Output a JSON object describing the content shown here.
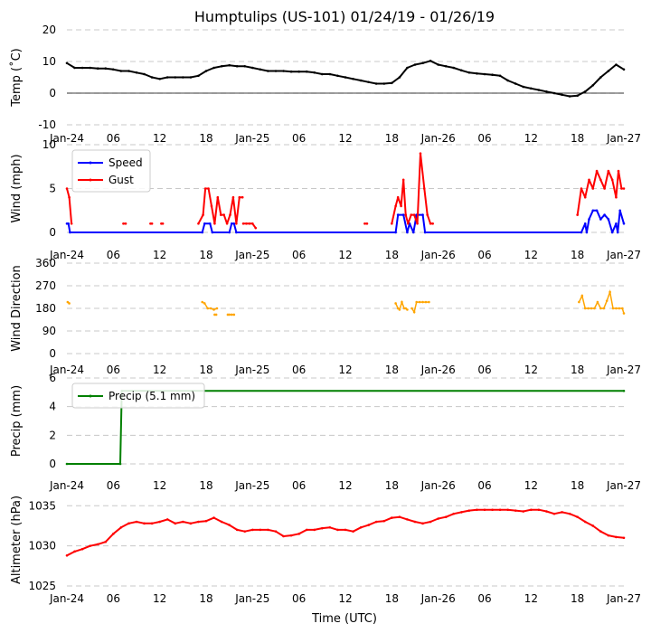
{
  "title": "Humptulips (US-101) 01/24/19 - 01/26/19",
  "xlabel": "Time (UTC)",
  "x_tick_labels": [
    "Jan-24",
    "06",
    "12",
    "18",
    "Jan-25",
    "06",
    "12",
    "18",
    "Jan-26",
    "06",
    "12",
    "18",
    "Jan-27"
  ],
  "colors": {
    "temp": "#000000",
    "speed": "#0000ff",
    "gust": "#ff0000",
    "dir": "#ffa500",
    "precip": "#008000",
    "alt": "#ff0000",
    "grid": "#c8c8c8"
  },
  "chart_data": [
    {
      "id": "temp",
      "type": "line",
      "ylabel": "Temp ($^\\circ$C)",
      "ylabel_text": "Temp (˚C)",
      "ylim": [
        -10,
        20
      ],
      "yticks": [
        -10,
        0,
        10,
        20
      ],
      "xlim": [
        0,
        72
      ],
      "zero_line": true,
      "series": [
        {
          "name": "Temperature",
          "color": "#000000",
          "x": [
            0,
            1,
            2,
            3,
            4,
            5,
            6,
            7,
            8,
            9,
            10,
            11,
            12,
            13,
            14,
            15,
            16,
            17,
            18,
            19,
            20,
            21,
            22,
            23,
            24,
            25,
            26,
            27,
            28,
            29,
            30,
            31,
            32,
            33,
            34,
            35,
            36,
            37,
            38,
            39,
            40,
            41,
            42,
            43,
            44,
            45,
            46,
            47,
            48,
            49,
            50,
            51,
            52,
            53,
            54,
            55,
            56,
            57,
            58,
            59,
            60,
            61,
            62,
            63,
            64,
            65,
            66,
            67,
            68,
            69,
            70,
            71,
            72
          ],
          "values": [
            9.5,
            8,
            8,
            8,
            7.8,
            7.8,
            7.5,
            7,
            7,
            6.5,
            6,
            5,
            4.5,
            5,
            5,
            5,
            5,
            5.5,
            7,
            8,
            8.5,
            8.8,
            8.5,
            8.5,
            8,
            7.5,
            7,
            7,
            7,
            6.8,
            6.8,
            6.8,
            6.5,
            6,
            6,
            5.5,
            5,
            4.5,
            4,
            3.5,
            3,
            3,
            3.2,
            5,
            8,
            9,
            9.5,
            10.2,
            9,
            8.5,
            8,
            7.2,
            6.5,
            6.2,
            6,
            5.8,
            5.5,
            4,
            3,
            2,
            1.5,
            1,
            0.5,
            0,
            -0.5,
            -1,
            -0.8,
            0.5,
            2.5,
            5,
            7,
            9,
            7.5
          ]
        }
      ]
    },
    {
      "id": "wind",
      "type": "line",
      "ylabel": "Wind (mph)",
      "ylim": [
        0,
        10
      ],
      "yticks": [
        0,
        5,
        10
      ],
      "xlim": [
        0,
        72
      ],
      "legend": {
        "position": "top-left",
        "entries": [
          "Speed",
          "Gust"
        ]
      },
      "series": [
        {
          "name": "Speed",
          "color": "#0000ff",
          "x": [
            0,
            0.2,
            0.4,
            17.5,
            17.8,
            18.5,
            18.8,
            21,
            21.3,
            21.6,
            21.9,
            42.5,
            42.8,
            43.5,
            44,
            44.3,
            44.8,
            45.2,
            46,
            46.3,
            66.5,
            67,
            67.2,
            67.5,
            68,
            68.5,
            69,
            69.5,
            70,
            70.5,
            71,
            71.2,
            71.5,
            72
          ],
          "values": [
            1,
            1,
            0,
            0,
            1,
            1,
            0,
            0,
            1,
            1,
            0,
            0,
            2,
            2,
            0,
            1,
            0,
            2,
            2,
            0,
            0,
            1,
            0,
            1.5,
            2.5,
            2.5,
            1.5,
            2,
            1.5,
            0,
            1,
            0,
            2.5,
            1
          ]
        },
        {
          "name": "Gust",
          "color": "#ff0000",
          "segments": [
            {
              "x": [
                0,
                0.3,
                0.6
              ],
              "values": [
                5,
                4,
                1
              ]
            },
            {
              "x": [
                7.3,
                7.6
              ],
              "values": [
                1,
                1
              ]
            },
            {
              "x": [
                10.8,
                11.0
              ],
              "values": [
                1,
                1
              ]
            },
            {
              "x": [
                12.2,
                12.4
              ],
              "values": [
                1,
                1
              ]
            },
            {
              "x": [
                17,
                17.6,
                17.9,
                18.3,
                18.7,
                19.1,
                19.5,
                19.9,
                20.3,
                20.7,
                21.1,
                21.5,
                21.9,
                22.3,
                22.7
              ],
              "values": [
                1,
                2,
                5,
                5,
                3,
                1,
                4,
                2,
                2,
                1,
                2,
                4,
                1,
                4,
                4
              ]
            },
            {
              "x": [
                22.8,
                23.2,
                23.6,
                24,
                24.4
              ],
              "values": [
                1,
                1,
                1,
                1,
                0.5
              ]
            },
            {
              "x": [
                38.5,
                38.8
              ],
              "values": [
                1,
                1
              ]
            },
            {
              "x": [
                42,
                42.5,
                42.8,
                43.2,
                43.5,
                43.8,
                44.1,
                44.5,
                44.9,
                45.3,
                45.7,
                46.2,
                46.6,
                47,
                47.3
              ],
              "values": [
                1,
                3,
                4,
                3,
                6,
                2,
                1,
                2,
                2,
                1,
                9,
                5,
                2,
                1,
                1
              ]
            },
            {
              "x": [
                66,
                66.5,
                67,
                67.5,
                68,
                68.5,
                69,
                69.5,
                70,
                70.5,
                71,
                71.3,
                71.7,
                72
              ],
              "values": [
                2,
                5,
                4,
                6,
                5,
                7,
                6,
                5,
                7,
                6,
                4,
                7,
                5,
                5
              ]
            }
          ]
        }
      ]
    },
    {
      "id": "dir",
      "type": "scatter",
      "ylabel": "Wind Direction",
      "ylim": [
        0,
        360
      ],
      "yticks": [
        0,
        90,
        180,
        270,
        360
      ],
      "xlim": [
        0,
        72
      ],
      "series": [
        {
          "name": "Wind Direction",
          "color": "#ffa500",
          "segments": [
            {
              "x": [
                0.1,
                0.3
              ],
              "values": [
                205,
                200
              ]
            },
            {
              "x": [
                17.5,
                17.8,
                18.2,
                18.6,
                19.0,
                19.4
              ],
              "values": [
                205,
                200,
                180,
                180,
                175,
                180
              ]
            },
            {
              "x": [
                19.1,
                19.3
              ],
              "values": [
                155,
                155
              ]
            },
            {
              "x": [
                20.8,
                21.0,
                21.3,
                21.6
              ],
              "values": [
                155,
                155,
                155,
                155
              ]
            },
            {
              "x": [
                42.5,
                42.8,
                43.0,
                43.3,
                43.6,
                43.8,
                44.0
              ],
              "values": [
                200,
                180,
                175,
                205,
                180,
                180,
                175
              ]
            },
            {
              "x": [
                44.6,
                44.9,
                45.2,
                45.6,
                46.0,
                46.4,
                46.8
              ],
              "values": [
                180,
                165,
                205,
                205,
                205,
                205,
                205
              ]
            },
            {
              "x": [
                66.2,
                66.6,
                67.0,
                67.4,
                67.8,
                68.2,
                68.6,
                69.0,
                69.4,
                69.8,
                70.2,
                70.6,
                71.0,
                71.4,
                71.8,
                72.0
              ],
              "values": [
                205,
                230,
                180,
                180,
                180,
                180,
                205,
                180,
                180,
                210,
                245,
                180,
                180,
                180,
                180,
                160
              ]
            }
          ]
        }
      ]
    },
    {
      "id": "precip",
      "type": "line",
      "ylabel": "Precip (mm)",
      "ylim": [
        0,
        6
      ],
      "yticks": [
        0,
        2,
        4,
        6
      ],
      "xlim": [
        0,
        72
      ],
      "legend": {
        "position": "top-left",
        "entries": [
          "Precip (5.1 mm)"
        ]
      },
      "series": [
        {
          "name": "Precip (5.1 mm)",
          "color": "#008000",
          "x": [
            0,
            6.9,
            7.1,
            72
          ],
          "values": [
            0,
            0,
            5.1,
            5.1
          ]
        }
      ]
    },
    {
      "id": "alt",
      "type": "line",
      "ylabel": "Altimeter (hPa)",
      "ylim": [
        1025,
        1036.5
      ],
      "yticks": [
        1025,
        1030,
        1035
      ],
      "xlim": [
        0,
        72
      ],
      "series": [
        {
          "name": "Altimeter",
          "color": "#ff0000",
          "x": [
            0,
            1,
            2,
            3,
            4,
            5,
            6,
            7,
            8,
            9,
            10,
            11,
            12,
            13,
            14,
            15,
            16,
            17,
            18,
            19,
            20,
            21,
            22,
            23,
            24,
            25,
            26,
            27,
            28,
            29,
            30,
            31,
            32,
            33,
            34,
            35,
            36,
            37,
            38,
            39,
            40,
            41,
            42,
            43,
            44,
            45,
            46,
            47,
            48,
            49,
            50,
            51,
            52,
            53,
            54,
            55,
            56,
            57,
            58,
            59,
            60,
            61,
            62,
            63,
            64,
            65,
            66,
            67,
            68,
            69,
            70,
            71,
            72
          ],
          "values": [
            1028.8,
            1029.3,
            1029.6,
            1030,
            1030.2,
            1030.5,
            1031.5,
            1032.3,
            1032.8,
            1033,
            1032.8,
            1032.8,
            1033,
            1033.3,
            1032.8,
            1033,
            1032.8,
            1033,
            1033.1,
            1033.5,
            1033,
            1032.6,
            1032,
            1031.8,
            1032,
            1032,
            1032,
            1031.8,
            1031.2,
            1031.3,
            1031.5,
            1032,
            1032,
            1032.2,
            1032.3,
            1032,
            1032,
            1031.8,
            1032.3,
            1032.6,
            1033,
            1033.1,
            1033.5,
            1033.6,
            1033.3,
            1033,
            1032.8,
            1033,
            1033.4,
            1033.6,
            1034,
            1034.2,
            1034.4,
            1034.5,
            1034.5,
            1034.5,
            1034.5,
            1034.5,
            1034.4,
            1034.3,
            1034.5,
            1034.5,
            1034.3,
            1034,
            1034.2,
            1034,
            1033.6,
            1033,
            1032.5,
            1031.8,
            1031.3,
            1031.1,
            1031
          ]
        }
      ]
    }
  ]
}
